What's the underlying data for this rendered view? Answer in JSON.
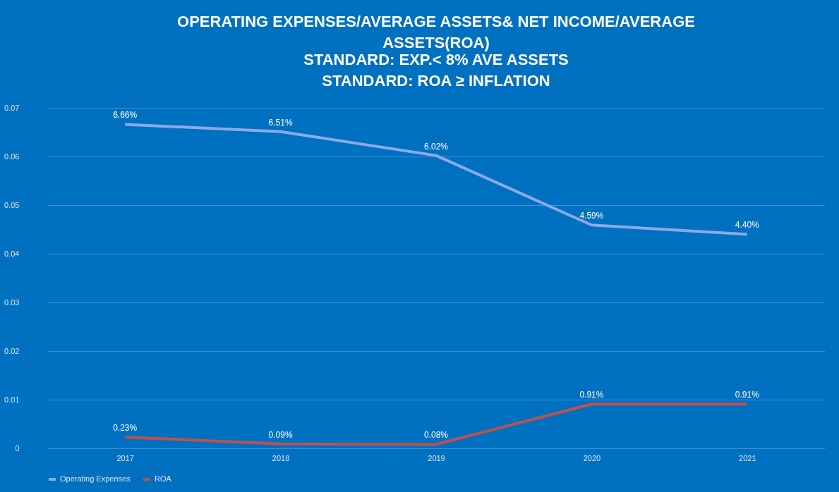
{
  "chart_data": {
    "type": "line",
    "title": "OPERATING EXPENSES/AVERAGE ASSETS& NET INCOME/AVERAGE ASSETS(ROA)",
    "subtitle": "STANDARD:  EXP.< 8% AVE ASSETS\nSTANDARD: ROA ≥ INFLATION",
    "categories": [
      "2017",
      "2018",
      "2019",
      "2020",
      "2021"
    ],
    "series": [
      {
        "name": "Operating Expenses",
        "color": "#8ea9e8",
        "values": [
          0.0666,
          0.0651,
          0.0602,
          0.0459,
          0.044
        ],
        "value_labels": [
          "6.66%",
          "6.51%",
          "6.02%",
          "4.59%",
          "4.40%"
        ]
      },
      {
        "name": "ROA",
        "color": "#c0504d",
        "values": [
          0.0023,
          0.0009,
          0.0008,
          0.0091,
          0.0091
        ],
        "value_labels": [
          "0.23%",
          "0.09%",
          "0.08%",
          "0.91%",
          "0.91%"
        ]
      }
    ],
    "ylim": [
      0,
      0.07
    ],
    "yticks": [
      0,
      0.01,
      0.02,
      0.03,
      0.04,
      0.05,
      0.06,
      0.07
    ],
    "grid": "y",
    "legend": "bottom",
    "marker": "none",
    "line_style": "solid"
  }
}
